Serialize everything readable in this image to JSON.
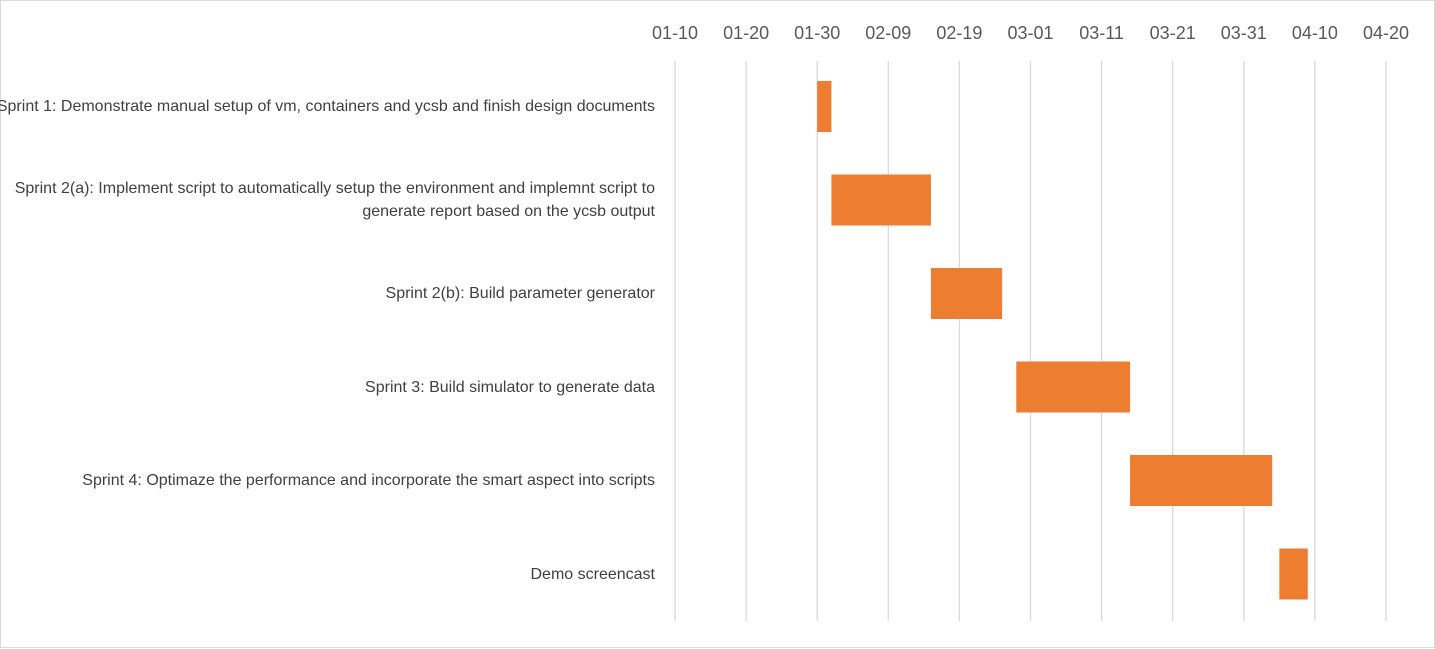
{
  "chart_data": {
    "type": "gantt",
    "title": "",
    "xlabel": "",
    "ylabel": "",
    "x_axis_position": "top",
    "grid": "vertical",
    "legend": "none",
    "bar_color": "#ED7D31",
    "xlim": [
      "01-10",
      "04-21"
    ],
    "x_ticks": [
      "01-10",
      "01-20",
      "01-30",
      "02-09",
      "02-19",
      "03-01",
      "03-11",
      "03-21",
      "03-31",
      "04-10",
      "04-20"
    ],
    "tasks": [
      {
        "label": "Sprint 1: Demonstrate manual setup of vm, containers and ycsb and finish design documents",
        "start": "01-30",
        "end": "02-01"
      },
      {
        "label": "Sprint 2(a): Implement script to automatically setup the environment and implemnt script to generate report based on the ycsb output",
        "start": "02-01",
        "end": "02-15"
      },
      {
        "label": "Sprint 2(b): Build parameter generator",
        "start": "02-15",
        "end": "02-25"
      },
      {
        "label": "Sprint 3: Build simulator to generate data",
        "start": "02-27",
        "end": "03-15"
      },
      {
        "label": "Sprint 4: Optimaze the performance and incorporate the smart aspect into scripts",
        "start": "03-15",
        "end": "04-04"
      },
      {
        "label": "Demo screencast",
        "start": "04-05",
        "end": "04-09"
      }
    ]
  }
}
